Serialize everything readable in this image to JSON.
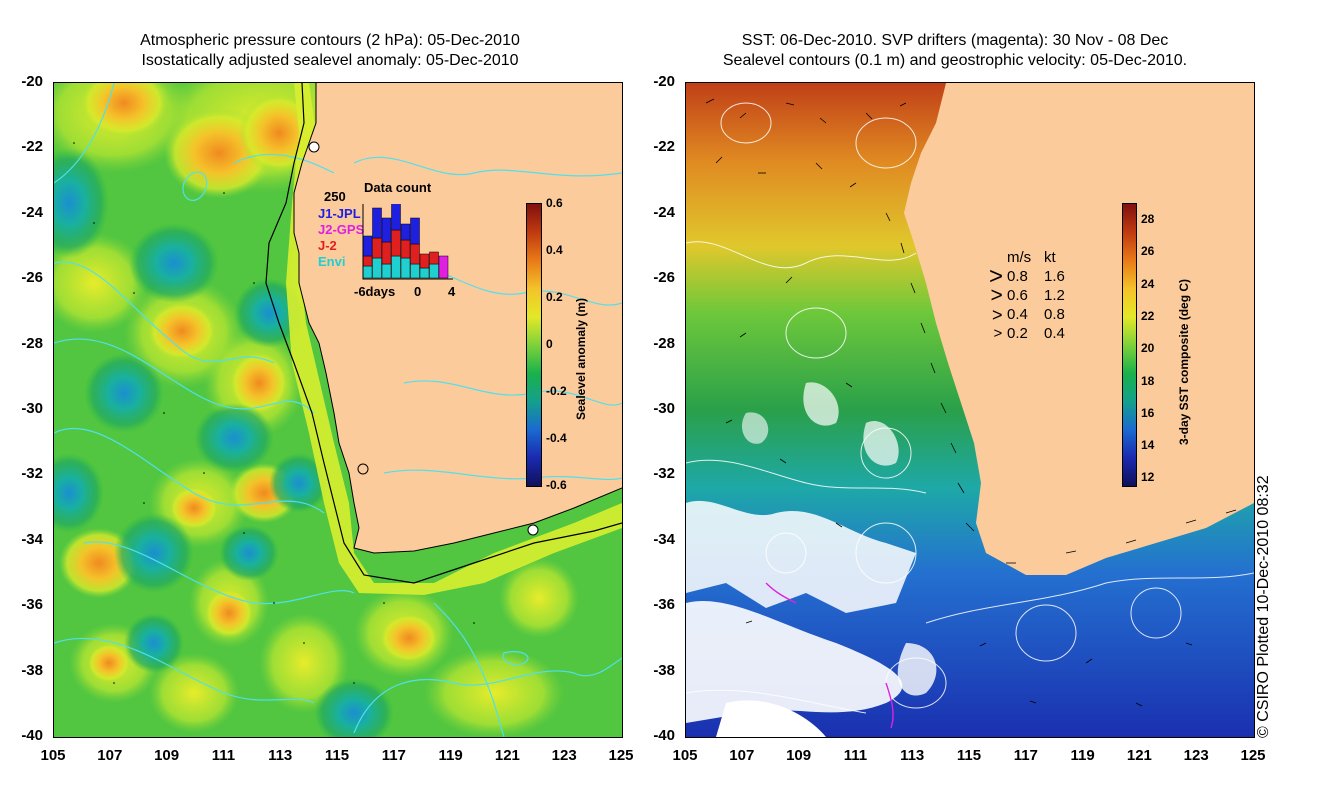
{
  "left_panel": {
    "title_line1": "Atmospheric pressure contours (2 hPa): 05-Dec-2010",
    "title_line2": "Isostatically adjusted sealevel anomaly: 05-Dec-2010",
    "y_ticks": [
      "-20",
      "-22",
      "-24",
      "-26",
      "-28",
      "-30",
      "-32",
      "-34",
      "-36",
      "-38",
      "-40"
    ],
    "x_ticks": [
      "105",
      "107",
      "109",
      "111",
      "113",
      "115",
      "117",
      "119",
      "121",
      "123",
      "125"
    ],
    "colorbar": {
      "title": "Sealevel anomaly (m)",
      "ticks": [
        "0.6",
        "0.4",
        "0.2",
        "0",
        "-0.2",
        "-0.4",
        "-0.6"
      ]
    },
    "data_count": {
      "title": "Data count",
      "max_label": "250",
      "x_labels": [
        "-6days",
        "0",
        "4"
      ],
      "satellites": [
        {
          "name": "J1-JPL",
          "color": "#1f1fe0"
        },
        {
          "name": "J2-GPS",
          "color": "#e020e0"
        },
        {
          "name": "J-2",
          "color": "#e02020"
        },
        {
          "name": "Envi",
          "color": "#20d0d0"
        }
      ]
    }
  },
  "right_panel": {
    "title_line1": "SST: 06-Dec-2010. SVP drifters (magenta): 30 Nov - 08 Dec",
    "title_line2": "Sealevel contours (0.1 m) and geostrophic velocity: 05-Dec-2010.",
    "y_ticks": [
      "-20",
      "-22",
      "-24",
      "-26",
      "-28",
      "-30",
      "-32",
      "-34",
      "-36",
      "-38",
      "-40"
    ],
    "x_ticks": [
      "105",
      "107",
      "109",
      "111",
      "113",
      "115",
      "117",
      "119",
      "121",
      "123",
      "125"
    ],
    "colorbar": {
      "title": "3-day SST composite (deg C)",
      "ticks": [
        "28",
        "26",
        "24",
        "22",
        "20",
        "18",
        "16",
        "14",
        "12"
      ]
    },
    "velocity_legend": {
      "header_ms": "m/s",
      "header_kt": "kt",
      "rows": [
        {
          "ms": "0.8",
          "kt": "1.6"
        },
        {
          "ms": "0.6",
          "kt": "1.2"
        },
        {
          "ms": "0.4",
          "kt": "0.8"
        },
        {
          "ms": "0.2",
          "kt": "0.4"
        }
      ]
    }
  },
  "credit": "© CSIRO Plotted 10-Dec-2010 08:32",
  "colors": {
    "land": "#fccb9c",
    "sst_warm": "#c0501a",
    "sst_cool": "#2040c0",
    "sla_green": "#3cc23c"
  }
}
